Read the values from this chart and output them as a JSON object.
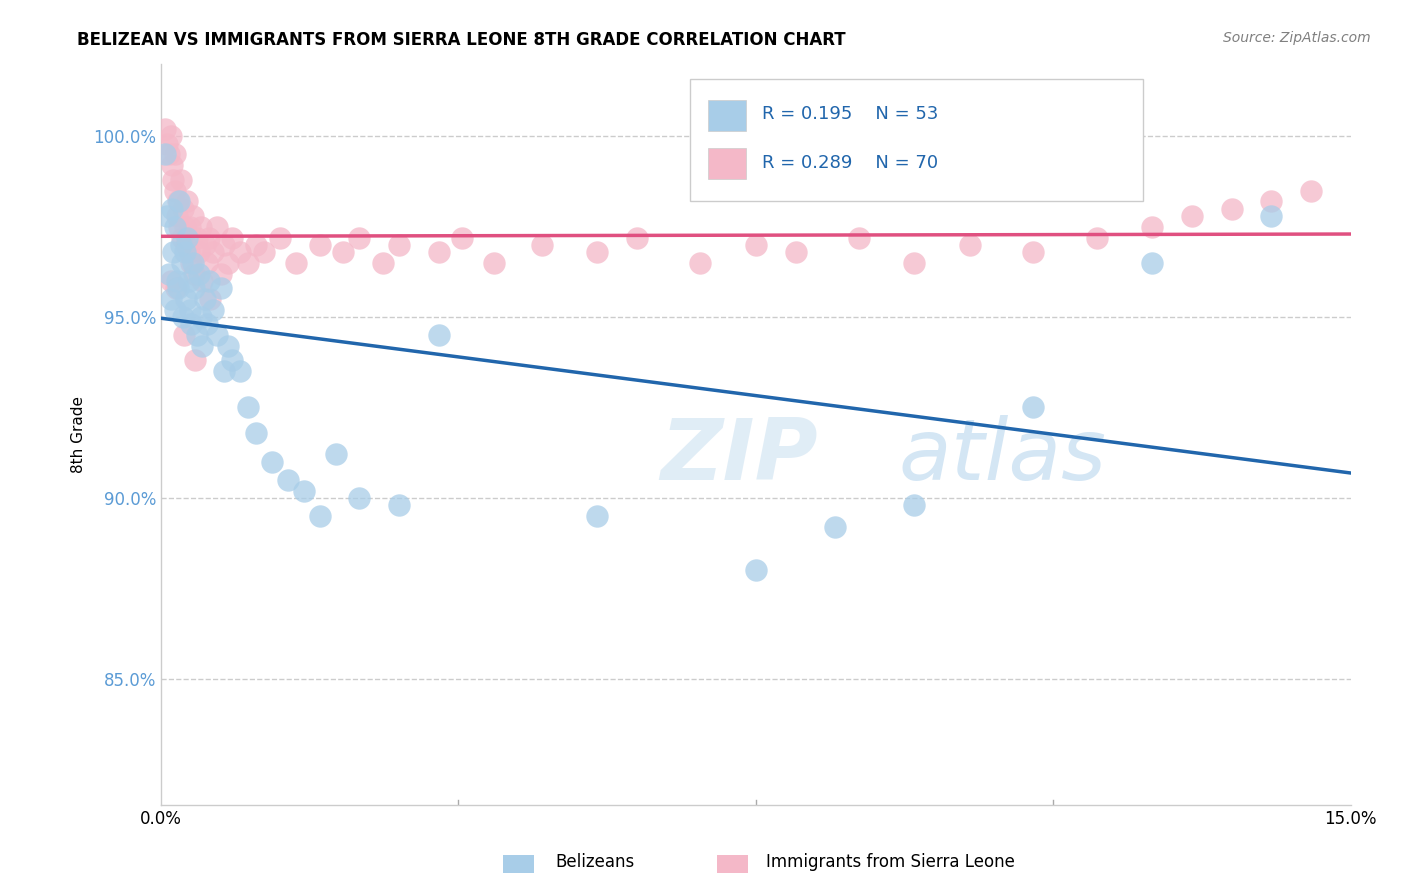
{
  "title": "BELIZEAN VS IMMIGRANTS FROM SIERRA LEONE 8TH GRADE CORRELATION CHART",
  "source_text": "Source: ZipAtlas.com",
  "ylabel": "8th Grade",
  "xlim": [
    0.0,
    15.0
  ],
  "ylim": [
    81.5,
    102.0
  ],
  "yticks": [
    85.0,
    90.0,
    95.0,
    100.0
  ],
  "ytick_labels": [
    "85.0%",
    "90.0%",
    "95.0%",
    "100.0%"
  ],
  "blue_R": 0.195,
  "blue_N": 53,
  "pink_R": 0.289,
  "pink_N": 70,
  "blue_color": "#a8cde8",
  "pink_color": "#f4b8c8",
  "blue_line_color": "#2166ac",
  "pink_line_color": "#e05080",
  "legend_label_blue": "Belizeans",
  "legend_label_pink": "Immigrants from Sierra Leone",
  "watermark_zip": "ZIP",
  "watermark_atlas": "atlas",
  "blue_x": [
    0.05,
    0.08,
    0.1,
    0.12,
    0.14,
    0.15,
    0.17,
    0.18,
    0.2,
    0.22,
    0.23,
    0.25,
    0.27,
    0.28,
    0.3,
    0.32,
    0.33,
    0.35,
    0.37,
    0.38,
    0.4,
    0.42,
    0.45,
    0.48,
    0.5,
    0.52,
    0.55,
    0.58,
    0.6,
    0.65,
    0.7,
    0.75,
    0.8,
    0.85,
    0.9,
    1.0,
    1.1,
    1.2,
    1.4,
    1.6,
    1.8,
    2.0,
    2.2,
    2.5,
    3.0,
    3.5,
    5.5,
    7.5,
    8.5,
    9.5,
    11.0,
    12.5,
    14.0
  ],
  "blue_y": [
    99.5,
    97.8,
    96.2,
    95.5,
    98.0,
    96.8,
    95.2,
    97.5,
    96.0,
    95.8,
    98.2,
    97.0,
    96.5,
    95.0,
    96.8,
    95.5,
    97.2,
    96.0,
    95.2,
    94.8,
    96.5,
    95.8,
    94.5,
    96.2,
    95.0,
    94.2,
    95.5,
    94.8,
    96.0,
    95.2,
    94.5,
    95.8,
    93.5,
    94.2,
    93.8,
    93.5,
    92.5,
    91.8,
    91.0,
    90.5,
    90.2,
    89.5,
    91.2,
    90.0,
    89.8,
    94.5,
    89.5,
    88.0,
    89.2,
    89.8,
    92.5,
    96.5,
    97.8
  ],
  "pink_x": [
    0.05,
    0.08,
    0.1,
    0.12,
    0.14,
    0.15,
    0.17,
    0.18,
    0.2,
    0.22,
    0.23,
    0.25,
    0.27,
    0.28,
    0.3,
    0.32,
    0.33,
    0.35,
    0.37,
    0.38,
    0.4,
    0.42,
    0.45,
    0.48,
    0.5,
    0.52,
    0.55,
    0.58,
    0.6,
    0.65,
    0.7,
    0.75,
    0.8,
    0.85,
    0.9,
    1.0,
    1.1,
    1.2,
    1.3,
    1.5,
    1.7,
    2.0,
    2.3,
    2.5,
    2.8,
    3.0,
    3.5,
    3.8,
    4.2,
    4.8,
    5.5,
    6.0,
    6.8,
    7.5,
    8.0,
    8.8,
    9.5,
    10.2,
    11.0,
    11.8,
    12.5,
    13.0,
    13.5,
    14.0,
    14.5,
    0.13,
    0.19,
    0.29,
    0.43,
    0.62
  ],
  "pink_y": [
    100.2,
    99.8,
    99.5,
    100.0,
    99.2,
    98.8,
    99.5,
    98.5,
    97.8,
    98.2,
    97.5,
    98.8,
    97.2,
    98.0,
    97.5,
    97.0,
    98.2,
    96.8,
    97.5,
    96.5,
    97.8,
    96.2,
    97.2,
    96.8,
    97.5,
    96.0,
    97.0,
    96.5,
    97.2,
    96.8,
    97.5,
    96.2,
    97.0,
    96.5,
    97.2,
    96.8,
    96.5,
    97.0,
    96.8,
    97.2,
    96.5,
    97.0,
    96.8,
    97.2,
    96.5,
    97.0,
    96.8,
    97.2,
    96.5,
    97.0,
    96.8,
    97.2,
    96.5,
    97.0,
    96.8,
    97.2,
    96.5,
    97.0,
    96.8,
    97.2,
    97.5,
    97.8,
    98.0,
    98.2,
    98.5,
    96.0,
    95.8,
    94.5,
    93.8,
    95.5
  ]
}
